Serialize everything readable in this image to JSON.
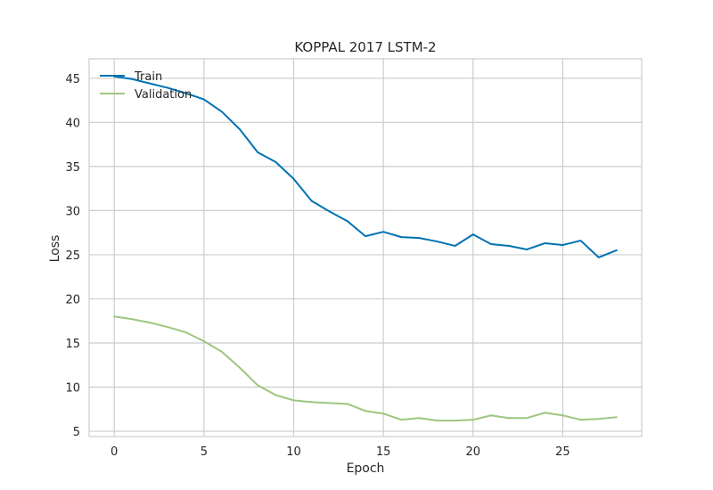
{
  "chart_data": {
    "type": "line",
    "title": "KOPPAL 2017 LSTM-2",
    "xlabel": "Epoch",
    "ylabel": "Loss",
    "xlim": [
      -1.4,
      29.4
    ],
    "ylim": [
      4.4,
      47.2
    ],
    "xticks": [
      0,
      5,
      10,
      15,
      20,
      25
    ],
    "yticks": [
      5,
      10,
      15,
      20,
      25,
      30,
      35,
      40,
      45
    ],
    "grid": true,
    "legend_position": "top-left",
    "x": [
      0,
      1,
      2,
      3,
      4,
      5,
      6,
      7,
      8,
      9,
      10,
      11,
      12,
      13,
      14,
      15,
      16,
      17,
      18,
      19,
      20,
      21,
      22,
      23,
      24,
      25,
      26,
      27,
      28
    ],
    "series": [
      {
        "name": "Train",
        "color": "#0072b2",
        "values": [
          45.2,
          44.9,
          44.4,
          43.9,
          43.3,
          42.6,
          41.2,
          39.2,
          36.6,
          35.5,
          33.6,
          31.1,
          29.9,
          28.8,
          27.1,
          27.6,
          27.0,
          26.9,
          26.5,
          26.0,
          27.3,
          26.2,
          26.0,
          25.6,
          26.3,
          26.1,
          26.6,
          24.7,
          25.5
        ]
      },
      {
        "name": "Validation",
        "color": "#9dc67e",
        "values": [
          18.0,
          17.7,
          17.3,
          16.8,
          16.2,
          15.2,
          14.0,
          12.2,
          10.2,
          9.1,
          8.5,
          8.3,
          8.2,
          8.1,
          7.3,
          7.0,
          6.3,
          6.5,
          6.2,
          6.2,
          6.3,
          6.8,
          6.5,
          6.5,
          7.1,
          6.8,
          6.3,
          6.4,
          6.6
        ]
      }
    ]
  }
}
